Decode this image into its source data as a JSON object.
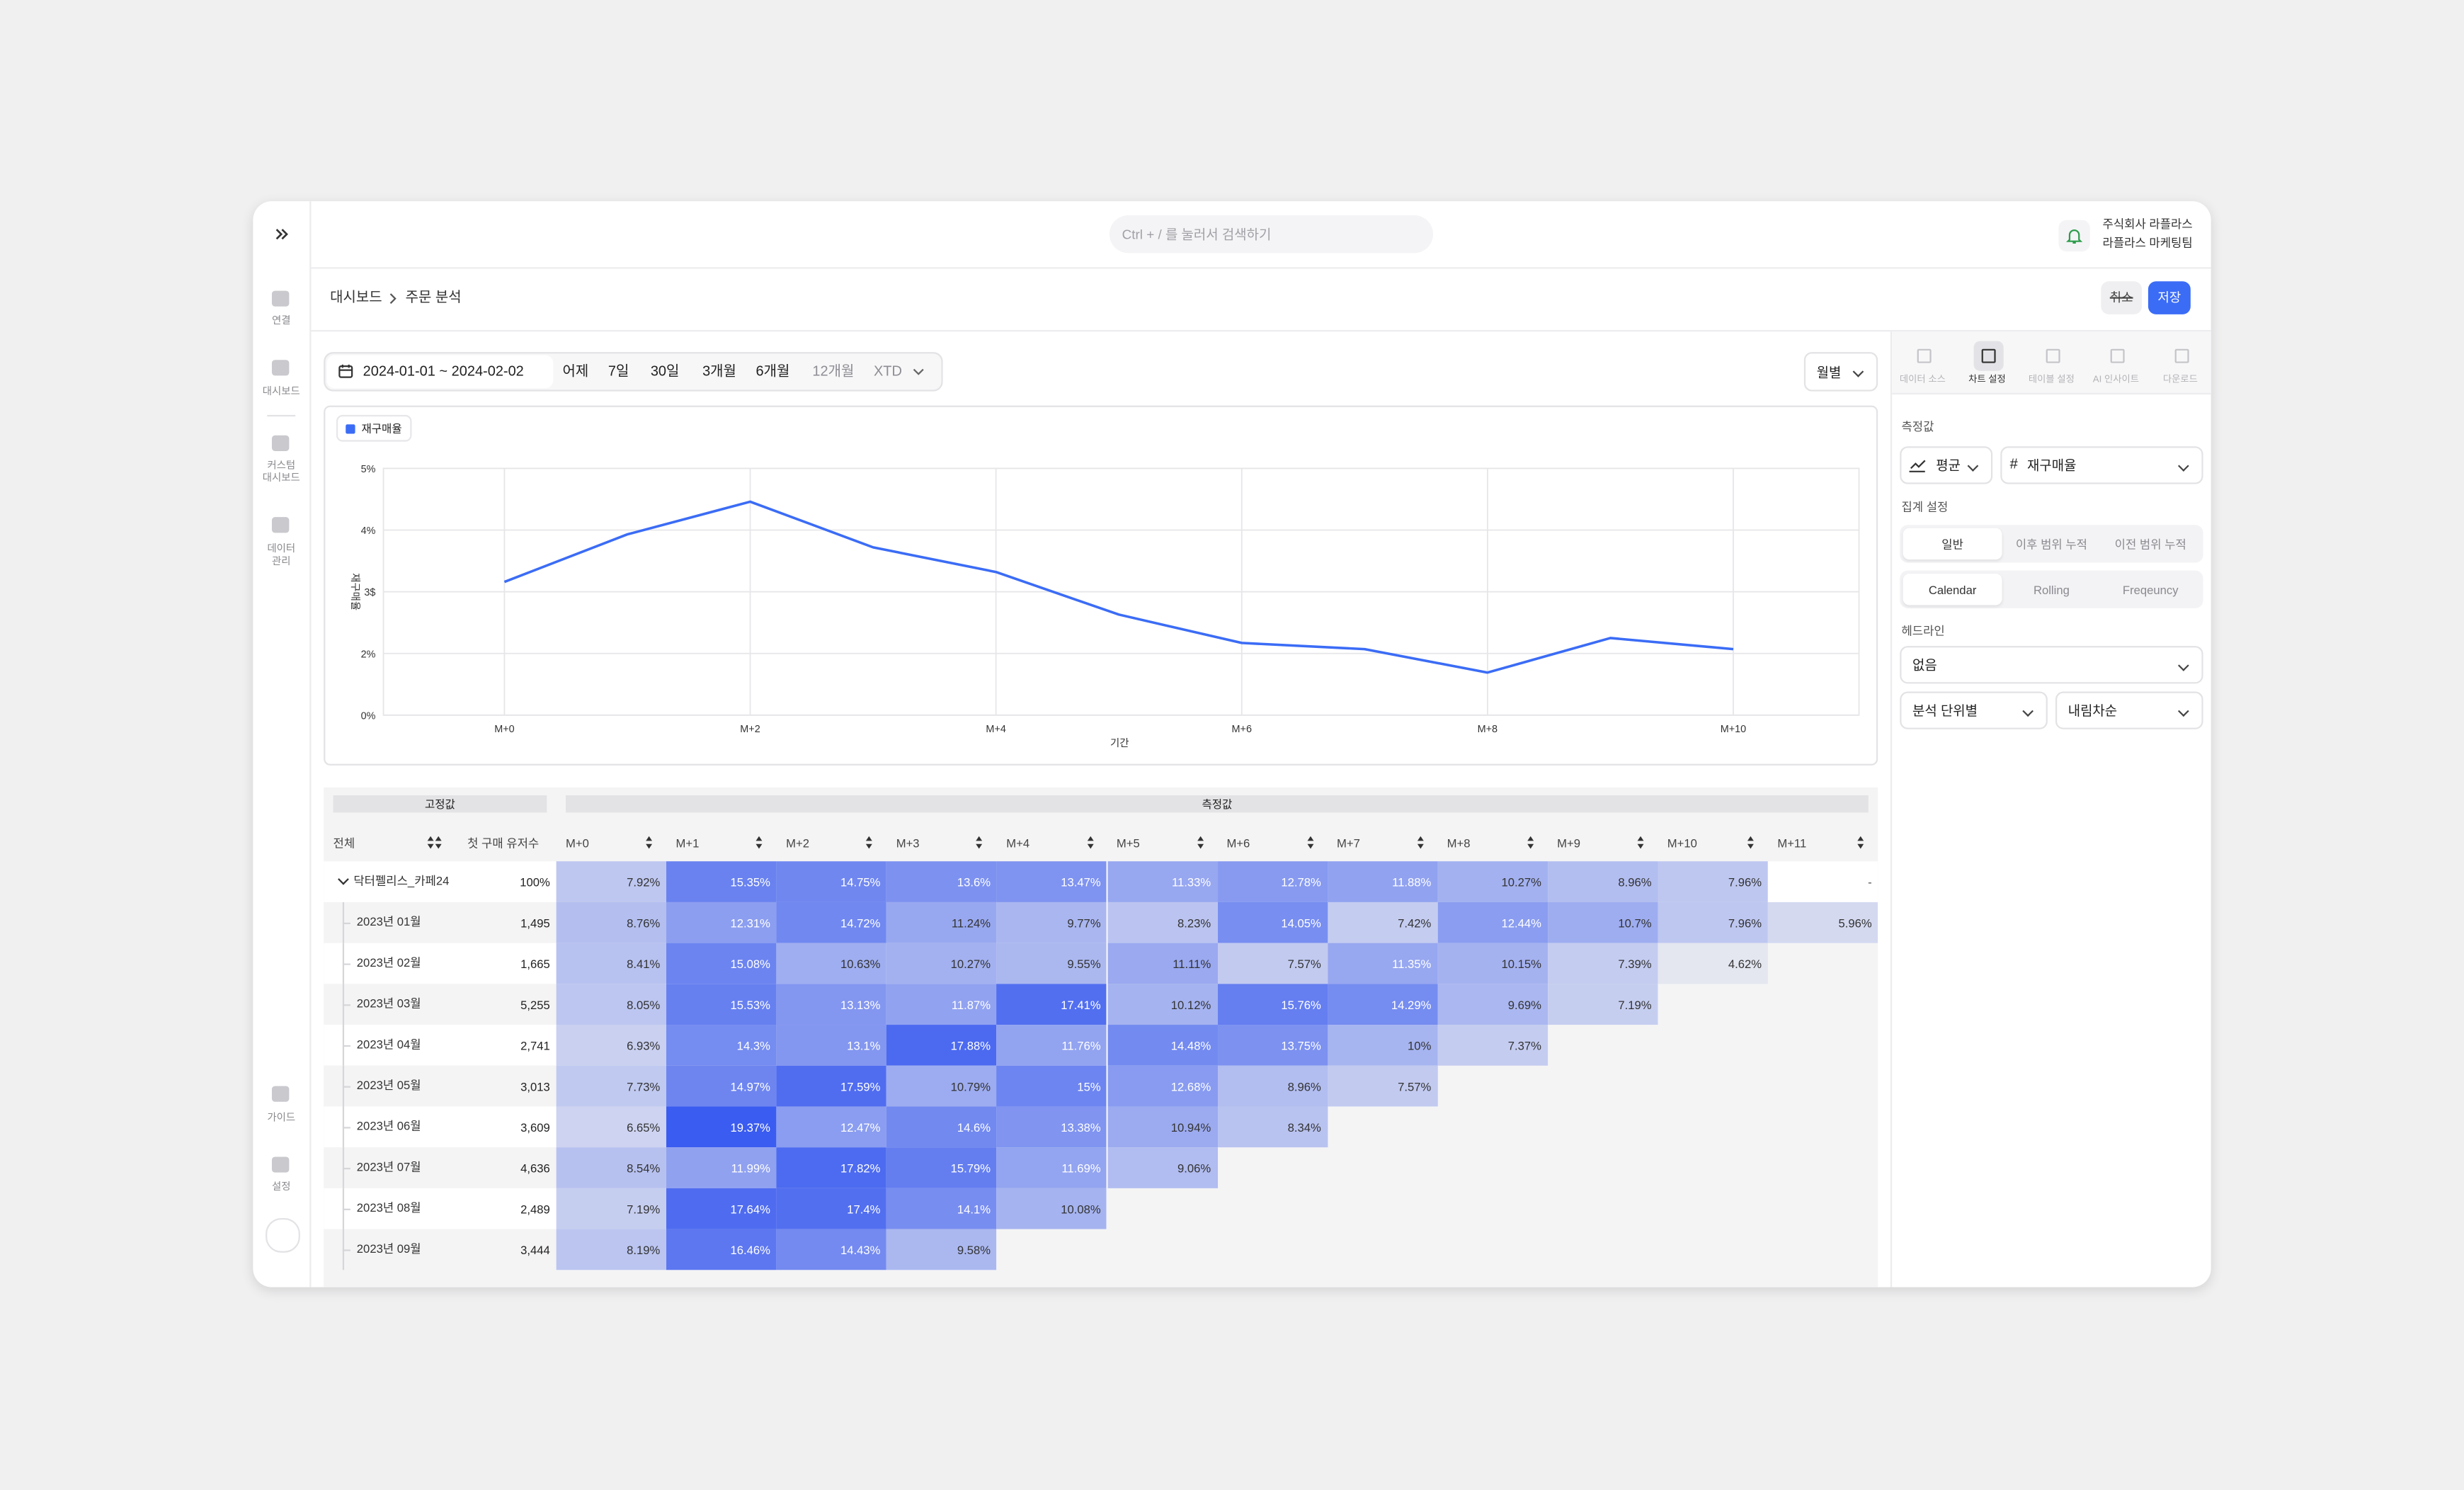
{
  "sidebar": {
    "items": [
      {
        "lines": [
          "연결"
        ]
      },
      {
        "lines": [
          "대시보드"
        ]
      },
      {
        "lines": [
          "커스텀",
          "대시보드"
        ]
      },
      {
        "lines": [
          "데이터",
          "관리"
        ]
      }
    ],
    "bottom": [
      {
        "lines": [
          "가이드"
        ]
      },
      {
        "lines": [
          "설정"
        ]
      }
    ]
  },
  "header": {
    "search_placeholder": "Ctrl + / 를 눌러서 검색하기",
    "company": "주식회사 라플라스",
    "team": "라플라스 마케팅팀"
  },
  "breadcrumb": {
    "items": [
      "대시보드",
      "주문 분석"
    ],
    "buttons": [
      "취소",
      "저장"
    ]
  },
  "filters": {
    "date_range": "2024-01-01 ~ 2024-02-02",
    "presets": [
      "어제",
      "7일",
      "30일",
      "3개월",
      "6개월",
      "12개월",
      "XTD"
    ],
    "interval": "월별"
  },
  "chart_data": {
    "type": "line",
    "x_label": "기간",
    "y_label": "재구매율",
    "categories": [
      "M+0",
      null,
      "M+2",
      null,
      "M+4",
      null,
      "M+6",
      null,
      "M+8",
      null,
      "M+10"
    ],
    "series": [
      {
        "name": "재구매율",
        "color": "#3b6cf6",
        "values": [
          2.16,
          2.93,
          3.46,
          2.72,
          2.32,
          1.63,
          1.17,
          1.07,
          0.69,
          1.25,
          1.07
        ]
      }
    ],
    "ylim": [
      0,
      4
    ],
    "yticks": [
      {
        "value": 0,
        "label": "0%"
      },
      {
        "value": 1,
        "label": "2%"
      },
      {
        "value": 2,
        "label": "3$"
      },
      {
        "value": 3,
        "label": "4%"
      },
      {
        "value": 4,
        "label": "5%"
      }
    ],
    "grid": true,
    "legend": "top-left"
  },
  "table": {
    "groups": [
      "고정값",
      "측정값"
    ],
    "columns": [
      "전체",
      "첫 구매 유저수",
      "M+0",
      "M+1",
      "M+2",
      "M+3",
      "M+4",
      "M+5",
      "M+6",
      "M+7",
      "M+8",
      "M+9",
      "M+10",
      "M+11"
    ],
    "rows": [
      {
        "label": "닥터펠리스_카페24",
        "users": "100%",
        "cells": [
          "7.92%",
          "15.35%",
          "14.75%",
          "13.6%",
          "13.47%",
          "11.33%",
          "12.78%",
          "11.88%",
          "10.27%",
          "8.96%",
          "7.96%",
          "-"
        ]
      },
      {
        "label": "2023년 01월",
        "users": "1,495",
        "cells": [
          "8.76%",
          "12.31%",
          "14.72%",
          "11.24%",
          "9.77%",
          "8.23%",
          "14.05%",
          "7.42%",
          "12.44%",
          "10.7%",
          "7.96%",
          "5.96%"
        ]
      },
      {
        "label": "2023년 02월",
        "users": "1,665",
        "cells": [
          "8.41%",
          "15.08%",
          "10.63%",
          "10.27%",
          "9.55%",
          "11.11%",
          "7.57%",
          "11.35%",
          "10.15%",
          "7.39%",
          "4.62%"
        ]
      },
      {
        "label": "2023년 03월",
        "users": "5,255",
        "cells": [
          "8.05%",
          "15.53%",
          "13.13%",
          "11.87%",
          "17.41%",
          "10.12%",
          "15.76%",
          "14.29%",
          "9.69%",
          "7.19%"
        ]
      },
      {
        "label": "2023년 04월",
        "users": "2,741",
        "cells": [
          "6.93%",
          "14.3%",
          "13.1%",
          "17.88%",
          "11.76%",
          "14.48%",
          "13.75%",
          "10%",
          "7.37%"
        ]
      },
      {
        "label": "2023년 05월",
        "users": "3,013",
        "cells": [
          "7.73%",
          "14.97%",
          "17.59%",
          "10.79%",
          "15%",
          "12.68%",
          "8.96%",
          "7.57%"
        ]
      },
      {
        "label": "2023년 06월",
        "users": "3,609",
        "cells": [
          "6.65%",
          "19.37%",
          "12.47%",
          "14.6%",
          "13.38%",
          "10.94%",
          "8.34%"
        ]
      },
      {
        "label": "2023년 07월",
        "users": "4,636",
        "cells": [
          "8.54%",
          "11.99%",
          "17.82%",
          "15.79%",
          "11.69%",
          "9.06%"
        ]
      },
      {
        "label": "2023년 08월",
        "users": "2,489",
        "cells": [
          "7.19%",
          "17.64%",
          "17.4%",
          "14.1%",
          "10.08%"
        ]
      },
      {
        "label": "2023년 09월",
        "users": "3,444",
        "cells": [
          "8.19%",
          "16.46%",
          "14.43%",
          "9.58%"
        ]
      }
    ]
  },
  "panel": {
    "tabs": [
      "데이터 소스",
      "차트 설정",
      "테이블 설정",
      "AI 인사이트",
      "다운로드"
    ],
    "measure_title": "측정값",
    "aggregate": "평균",
    "metric": "재구매율",
    "agg_title": "집계 설정",
    "agg_modes": [
      "일반",
      "이후 범위 누적",
      "이전 범위 누적"
    ],
    "periods": [
      "Calendar",
      "Rolling",
      "Freqeuncy"
    ],
    "headline_title": "헤드라인",
    "headline": "없음",
    "unit": "분석 단위별",
    "order": "내림차순"
  }
}
